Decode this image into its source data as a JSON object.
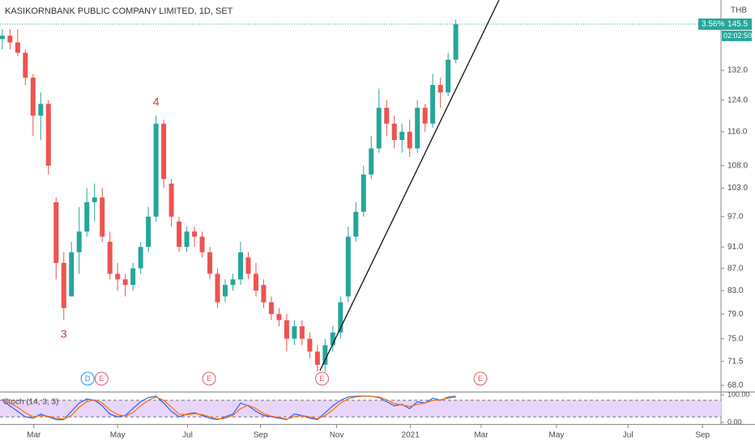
{
  "chart_data": {
    "type": "candlestick",
    "title": "KASIKORNBANK PUBLIC COMPANY LIMITED, 1D, SET",
    "currency": "THB",
    "change_label": "3.56%",
    "timer": "02:02:50",
    "log_scale": true,
    "up_color": "#26a69a",
    "down_color": "#ef5350",
    "open": [
      141,
      142,
      140,
      137,
      130,
      120,
      123,
      100,
      88,
      82,
      90,
      94,
      100,
      101,
      92,
      86,
      85,
      84,
      87,
      91,
      97,
      118,
      104,
      96,
      91,
      94,
      93,
      90,
      86,
      82,
      84,
      85,
      89,
      86,
      84,
      81,
      79,
      78,
      75,
      77,
      75,
      73,
      71,
      74,
      76,
      82,
      93,
      98,
      106,
      112,
      122,
      118,
      114,
      116,
      112,
      122,
      118,
      128,
      126,
      135
    ],
    "high": [
      144,
      144,
      144,
      138,
      131,
      126,
      124,
      101,
      90,
      92,
      99,
      103,
      104,
      103,
      94,
      88,
      86,
      88,
      92,
      99,
      120,
      119,
      105,
      97,
      95,
      95,
      94,
      91,
      87,
      85,
      86,
      92,
      90,
      88,
      85,
      82,
      80,
      79,
      78,
      78,
      76,
      74,
      75,
      77,
      82,
      95,
      100,
      108,
      115,
      127,
      124,
      120,
      118,
      119,
      124,
      123,
      131,
      130,
      137,
      147
    ],
    "low": [
      138,
      138,
      136,
      128,
      115,
      114,
      106,
      85,
      78,
      82,
      86,
      93,
      96,
      92,
      85,
      83,
      82,
      83,
      86,
      90,
      96,
      103,
      95,
      90,
      90,
      91,
      89,
      85,
      80,
      81,
      83,
      84,
      85,
      82,
      80,
      78,
      77,
      73,
      74,
      74,
      72,
      70,
      70,
      73,
      75,
      81,
      92,
      97,
      105,
      111,
      115,
      112,
      111,
      110,
      111,
      116,
      117,
      122,
      125,
      134
    ],
    "close": [
      142,
      140,
      137,
      130,
      120,
      123,
      108,
      88,
      80,
      90,
      94,
      100,
      101,
      93,
      86,
      85,
      84,
      87,
      91,
      97,
      118,
      105,
      97,
      91,
      94,
      93,
      90,
      86,
      81,
      84,
      85,
      90,
      86,
      83,
      81,
      79,
      78,
      75,
      77,
      75,
      73,
      71,
      74,
      76,
      81,
      93,
      98,
      106,
      112,
      122,
      118,
      114,
      116,
      112,
      122,
      118,
      128,
      126,
      135,
      145.5
    ],
    "ylim": [
      67.1,
      153.1
    ],
    "yticks": [
      {
        "value": 68,
        "label": "68.0"
      },
      {
        "value": 71.5,
        "label": "71.5"
      },
      {
        "value": 75,
        "label": "75.0"
      },
      {
        "value": 79,
        "label": "79.0"
      },
      {
        "value": 83,
        "label": "83.0"
      },
      {
        "value": 87,
        "label": "87.0"
      },
      {
        "value": 91,
        "label": "91.0"
      },
      {
        "value": 97,
        "label": "97.0"
      },
      {
        "value": 103,
        "label": "103.0"
      },
      {
        "value": 108,
        "label": "108.0"
      },
      {
        "value": 116,
        "label": "116.0"
      },
      {
        "value": 124,
        "label": "124.0"
      },
      {
        "value": 132,
        "label": "132.0"
      }
    ],
    "xlim": [
      -0.3,
      93.5
    ],
    "xticks": [
      {
        "value": 4.1,
        "label": "Mar"
      },
      {
        "value": 15.0,
        "label": "May"
      },
      {
        "value": 24.1,
        "label": "Jul"
      },
      {
        "value": 33.6,
        "label": "Sep"
      },
      {
        "value": 43.5,
        "label": "Nov"
      },
      {
        "value": 53.1,
        "label": "2021"
      },
      {
        "value": 62.3,
        "label": "Mar"
      },
      {
        "value": 72.1,
        "label": "May"
      },
      {
        "value": 81.4,
        "label": "Jul"
      },
      {
        "value": 91.1,
        "label": "Sep"
      }
    ],
    "wave_labels": [
      {
        "text": "3",
        "x": 8
      },
      {
        "text": "4",
        "x": 20
      }
    ],
    "events": [
      {
        "label": "D",
        "x": 11.1,
        "color": "#2196f3"
      },
      {
        "label": "E",
        "x": 12.9,
        "color": "#e05a6a"
      },
      {
        "label": "E",
        "x": 26.9,
        "color": "#e05a6a"
      },
      {
        "label": "E",
        "x": 41.6,
        "color": "#e05a6a"
      },
      {
        "label": "E",
        "x": 62.2,
        "color": "#e05a6a"
      }
    ],
    "indicator": {
      "title": "Stoch (14, 3, 3)",
      "ylim": [
        -5.9,
        108.8
      ],
      "yticks": [
        {
          "value": 100,
          "label": "100.00"
        },
        {
          "value": 0,
          "label": "0.00"
        }
      ],
      "levels": [
        20,
        80
      ],
      "band_color": "#e9d5fb",
      "series": [
        {
          "color": "#2962ff",
          "values": [
            80,
            60,
            40,
            20,
            15,
            30,
            20,
            10,
            10,
            40,
            70,
            85,
            80,
            60,
            30,
            20,
            25,
            50,
            75,
            90,
            95,
            70,
            40,
            20,
            30,
            35,
            25,
            15,
            10,
            20,
            30,
            70,
            60,
            40,
            25,
            20,
            15,
            10,
            30,
            25,
            15,
            10,
            35,
            60,
            80,
            92,
            95,
            96,
            95,
            90,
            75,
            60,
            65,
            50,
            75,
            70,
            88,
            80,
            92,
            95
          ]
        },
        {
          "color": "#ff6d00",
          "values": [
            85,
            70,
            55,
            35,
            20,
            25,
            22,
            15,
            12,
            25,
            55,
            75,
            82,
            70,
            45,
            28,
            23,
            35,
            60,
            80,
            92,
            80,
            55,
            30,
            28,
            32,
            28,
            20,
            12,
            15,
            25,
            50,
            62,
            50,
            32,
            22,
            18,
            12,
            20,
            25,
            20,
            13,
            25,
            45,
            70,
            85,
            93,
            95,
            95,
            92,
            82,
            68,
            63,
            58,
            65,
            70,
            80,
            82,
            88,
            92
          ]
        }
      ]
    }
  }
}
